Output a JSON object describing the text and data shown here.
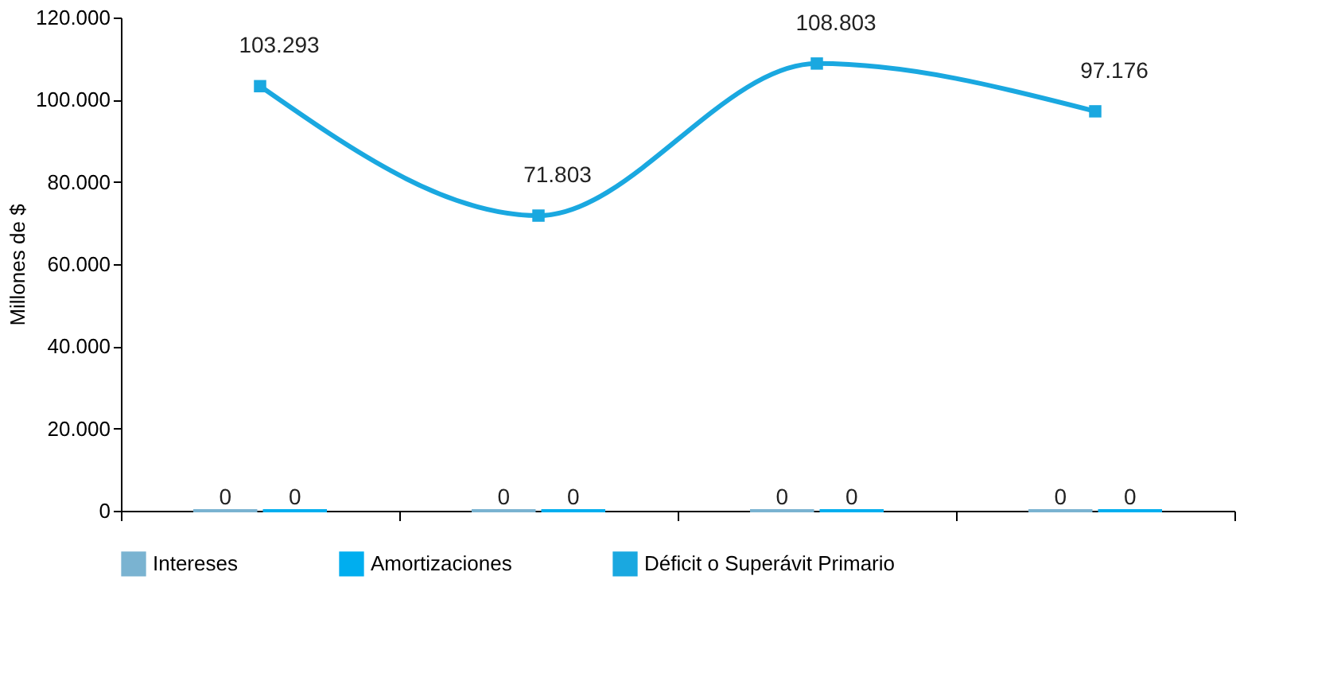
{
  "chart_data": {
    "type": "bar",
    "ylabel": "Millones de $",
    "categories": [
      null,
      null,
      null,
      null
    ],
    "series": [
      {
        "name": "Intereses",
        "color": "#7ab3d1",
        "values": [
          0,
          0,
          0,
          0
        ],
        "value_labels": [
          "0",
          "0",
          "0",
          "0"
        ]
      },
      {
        "name": "Amortizaciones",
        "color": "#00aeef",
        "values": [
          0,
          0,
          0,
          0
        ],
        "value_labels": [
          "0",
          "0",
          "0",
          "0"
        ]
      },
      {
        "name": "Déficit o Superávit Primario",
        "type": "line",
        "color": "#1aa8e0",
        "marker": "square",
        "values": [
          103293,
          71803,
          108803,
          97176
        ],
        "value_labels": [
          "103.293",
          "71.803",
          "108.803",
          "97.176"
        ]
      }
    ],
    "ylim": [
      0,
      120000
    ],
    "yticks": [
      {
        "value": 0,
        "label": "0"
      },
      {
        "value": 20000,
        "label": "20.000"
      },
      {
        "value": 40000,
        "label": "40.000"
      },
      {
        "value": 60000,
        "label": "60.000"
      },
      {
        "value": 80000,
        "label": "80.000"
      },
      {
        "value": 100000,
        "label": "100.000"
      },
      {
        "value": 120000,
        "label": "120.000"
      }
    ],
    "grid": false,
    "legend": "bottom"
  }
}
